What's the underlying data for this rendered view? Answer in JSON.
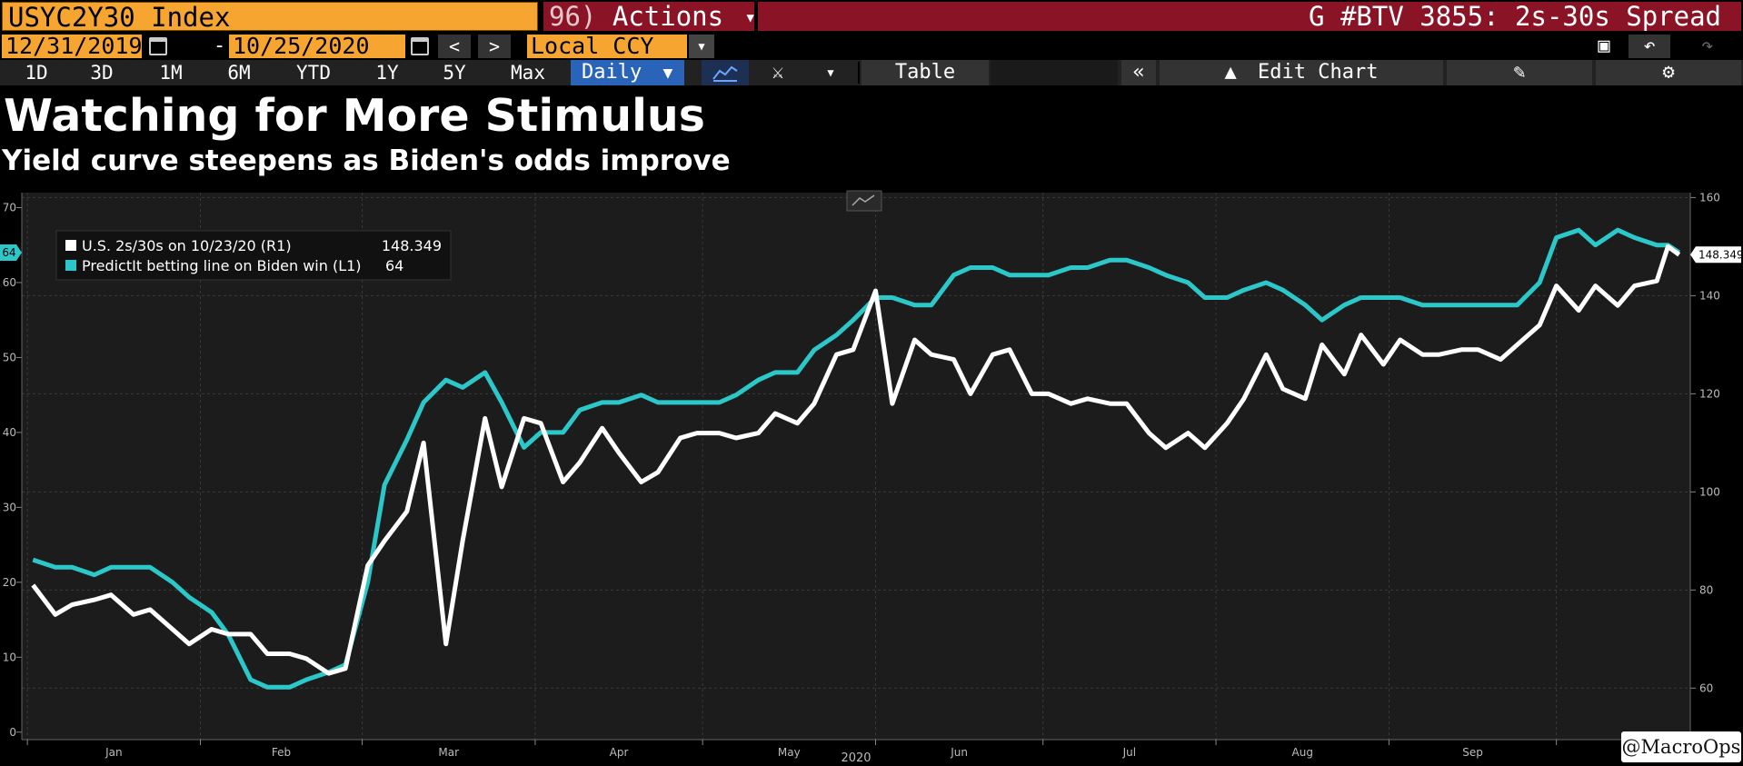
{
  "header": {
    "ticker": "USYC2Y30 Index",
    "actions_num": "96)",
    "actions_label": "Actions",
    "title": "G #BTV 3855: 2s-30s Spread"
  },
  "controls": {
    "start_date": "12/31/2019",
    "dash": "-",
    "end_date": "10/25/2020",
    "prev": "<",
    "next": ">",
    "currency": "Local CCY",
    "ranges": [
      "1D",
      "3D",
      "1M",
      "6M",
      "YTD",
      "1Y",
      "5Y",
      "Max"
    ],
    "frequency": "Daily",
    "table_label": "Table",
    "edit_chart_label": "Edit Chart"
  },
  "titles": {
    "main": "Watching for More Stimulus",
    "sub": "Yield curve steepens as Biden's odds improve"
  },
  "watermark": "@MacroOps",
  "colors": {
    "spread": "#ffffff",
    "predictit": "#2cc7c9",
    "actions_bg": "#8a1426",
    "ticker_bg": "#f7a531",
    "daily_bg": "#2a64b8"
  },
  "chart_data": {
    "type": "line",
    "x_axis": {
      "label": "2020",
      "ticks": [
        "Jan",
        "Feb",
        "Mar",
        "Apr",
        "May",
        "Jun",
        "Jul",
        "Aug",
        "Sep",
        "Oct"
      ],
      "range": [
        "2019-12-31",
        "2020-10-25"
      ]
    },
    "left_axis": {
      "ticks": [
        0,
        10,
        20,
        30,
        40,
        50,
        60,
        70
      ],
      "range": [
        -1,
        72
      ]
    },
    "right_axis": {
      "ticks": [
        60,
        80,
        100,
        120,
        140,
        160
      ],
      "range": [
        49.5,
        161
      ]
    },
    "grid": true,
    "legend_position": "top-left",
    "series": [
      {
        "name": "U.S. 2s/30s  on 10/23/20 (R1)",
        "last_value": "148.349",
        "axis": "right",
        "color": "#ffffff",
        "x": [
          "2020-01-02",
          "2020-01-06",
          "2020-01-09",
          "2020-01-13",
          "2020-01-16",
          "2020-01-20",
          "2020-01-23",
          "2020-01-27",
          "2020-01-30",
          "2020-02-03",
          "2020-02-06",
          "2020-02-10",
          "2020-02-13",
          "2020-02-17",
          "2020-02-20",
          "2020-02-24",
          "2020-02-27",
          "2020-03-02",
          "2020-03-05",
          "2020-03-09",
          "2020-03-12",
          "2020-03-16",
          "2020-03-19",
          "2020-03-23",
          "2020-03-26",
          "2020-03-30",
          "2020-04-02",
          "2020-04-06",
          "2020-04-09",
          "2020-04-13",
          "2020-04-16",
          "2020-04-20",
          "2020-04-23",
          "2020-04-27",
          "2020-04-30",
          "2020-05-04",
          "2020-05-07",
          "2020-05-11",
          "2020-05-14",
          "2020-05-18",
          "2020-05-21",
          "2020-05-25",
          "2020-05-28",
          "2020-06-01",
          "2020-06-04",
          "2020-06-08",
          "2020-06-11",
          "2020-06-15",
          "2020-06-18",
          "2020-06-22",
          "2020-06-25",
          "2020-06-29",
          "2020-07-02",
          "2020-07-06",
          "2020-07-09",
          "2020-07-13",
          "2020-07-16",
          "2020-07-20",
          "2020-07-23",
          "2020-07-27",
          "2020-07-30",
          "2020-08-03",
          "2020-08-06",
          "2020-08-10",
          "2020-08-13",
          "2020-08-17",
          "2020-08-20",
          "2020-08-24",
          "2020-08-27",
          "2020-08-31",
          "2020-09-03",
          "2020-09-07",
          "2020-09-10",
          "2020-09-14",
          "2020-09-17",
          "2020-09-21",
          "2020-09-24",
          "2020-09-28",
          "2020-10-01",
          "2020-10-05",
          "2020-10-08",
          "2020-10-12",
          "2020-10-15",
          "2020-10-19",
          "2020-10-21",
          "2020-10-23"
        ],
        "values": [
          81,
          75,
          77,
          78,
          79,
          75,
          76,
          72,
          69,
          72,
          71,
          71,
          67,
          67,
          66,
          63,
          64,
          85,
          90,
          96,
          110,
          69,
          90,
          115,
          101,
          115,
          114,
          102,
          106,
          113,
          108,
          102,
          104,
          111,
          112,
          112,
          111,
          112,
          116,
          114,
          118,
          128,
          129,
          141,
          118,
          131,
          128,
          127,
          120,
          128,
          129,
          120,
          120,
          118,
          119,
          118,
          118,
          112,
          109,
          112,
          109,
          114,
          119,
          128,
          121,
          119,
          130,
          124,
          132,
          126,
          131,
          128,
          128,
          129,
          129,
          127,
          130,
          134,
          142,
          137,
          142,
          138,
          142,
          143,
          150,
          148.349
        ]
      },
      {
        "name": "PredictIt betting line on Biden win (L1)",
        "last_value": "64",
        "axis": "left",
        "color": "#2cc7c9",
        "x": [
          "2020-01-02",
          "2020-01-06",
          "2020-01-09",
          "2020-01-13",
          "2020-01-16",
          "2020-01-20",
          "2020-01-23",
          "2020-01-27",
          "2020-01-30",
          "2020-02-03",
          "2020-02-06",
          "2020-02-10",
          "2020-02-13",
          "2020-02-17",
          "2020-02-20",
          "2020-02-24",
          "2020-02-27",
          "2020-03-02",
          "2020-03-05",
          "2020-03-09",
          "2020-03-12",
          "2020-03-16",
          "2020-03-19",
          "2020-03-23",
          "2020-03-26",
          "2020-03-30",
          "2020-04-02",
          "2020-04-06",
          "2020-04-09",
          "2020-04-13",
          "2020-04-16",
          "2020-04-20",
          "2020-04-23",
          "2020-04-27",
          "2020-04-30",
          "2020-05-04",
          "2020-05-07",
          "2020-05-11",
          "2020-05-14",
          "2020-05-18",
          "2020-05-21",
          "2020-05-25",
          "2020-05-28",
          "2020-06-01",
          "2020-06-04",
          "2020-06-08",
          "2020-06-11",
          "2020-06-15",
          "2020-06-18",
          "2020-06-22",
          "2020-06-25",
          "2020-06-29",
          "2020-07-02",
          "2020-07-06",
          "2020-07-09",
          "2020-07-13",
          "2020-07-16",
          "2020-07-20",
          "2020-07-23",
          "2020-07-27",
          "2020-07-30",
          "2020-08-03",
          "2020-08-06",
          "2020-08-10",
          "2020-08-13",
          "2020-08-17",
          "2020-08-20",
          "2020-08-24",
          "2020-08-27",
          "2020-08-31",
          "2020-09-03",
          "2020-09-07",
          "2020-09-10",
          "2020-09-14",
          "2020-09-17",
          "2020-09-21",
          "2020-09-24",
          "2020-09-28",
          "2020-10-01",
          "2020-10-05",
          "2020-10-08",
          "2020-10-12",
          "2020-10-15",
          "2020-10-19",
          "2020-10-21",
          "2020-10-23"
        ],
        "values": [
          23,
          22,
          22,
          21,
          22,
          22,
          22,
          20,
          18,
          16,
          13,
          7,
          6,
          6,
          7,
          8,
          9,
          20,
          33,
          39,
          44,
          47,
          46,
          48,
          44,
          38,
          40,
          40,
          43,
          44,
          44,
          45,
          44,
          44,
          44,
          44,
          45,
          47,
          48,
          48,
          51,
          53,
          55,
          58,
          58,
          57,
          57,
          61,
          62,
          62,
          61,
          61,
          61,
          62,
          62,
          63,
          63,
          62,
          61,
          60,
          58,
          58,
          59,
          60,
          59,
          57,
          55,
          57,
          58,
          58,
          58,
          57,
          57,
          57,
          57,
          57,
          57,
          60,
          66,
          67,
          65,
          67,
          66,
          65,
          65,
          64
        ]
      }
    ]
  }
}
